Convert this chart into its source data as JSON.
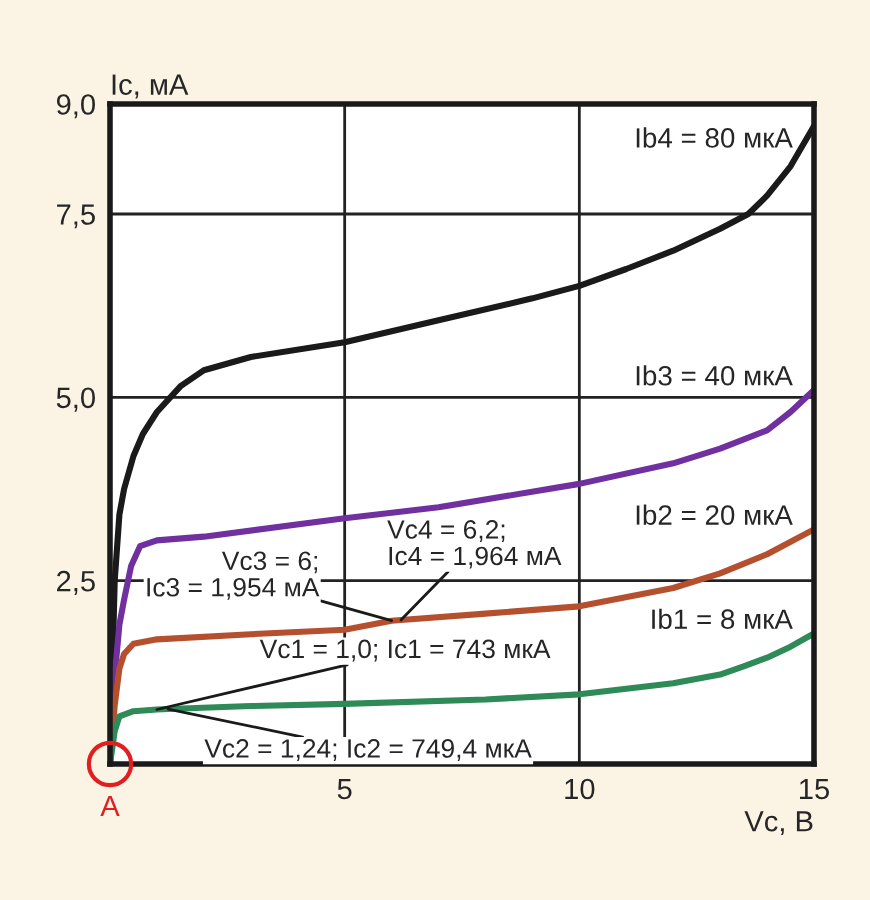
{
  "chart_data": {
    "type": "line",
    "xlabel": "Vc, B",
    "ylabel": "Ic, мА",
    "xlim": [
      0,
      15
    ],
    "ylim": [
      0,
      9.0
    ],
    "xticks": [
      5,
      10,
      15
    ],
    "yticks": [
      {
        "value": 2.5,
        "label": "2,5"
      },
      {
        "value": 5.0,
        "label": "5,0"
      },
      {
        "value": 7.5,
        "label": "7,5"
      },
      {
        "value": 9.0,
        "label": "9,0"
      }
    ],
    "grid": true,
    "legend": false,
    "marker": "none",
    "line_style": "solid",
    "series": [
      {
        "name": "Ib4 = 80 мкА",
        "color": "#1a1a1a",
        "x": [
          0,
          0.1,
          0.2,
          0.3,
          0.5,
          0.7,
          1,
          1.5,
          2,
          3,
          5,
          7,
          9,
          10,
          11,
          12,
          13,
          13.6,
          14,
          14.5,
          15
        ],
        "values": [
          0,
          2.5,
          3.4,
          3.75,
          4.2,
          4.5,
          4.8,
          5.15,
          5.37,
          5.55,
          5.75,
          6.05,
          6.35,
          6.52,
          6.75,
          7.0,
          7.3,
          7.5,
          7.75,
          8.15,
          8.7
        ]
      },
      {
        "name": "Ib3 = 40 мкА",
        "color": "#7030a0",
        "x": [
          0,
          0.1,
          0.2,
          0.3,
          0.45,
          0.64,
          1,
          2,
          5,
          7,
          10,
          12,
          13,
          14,
          14.5,
          15
        ],
        "values": [
          0,
          1.2,
          1.9,
          2.24,
          2.7,
          2.97,
          3.05,
          3.1,
          3.35,
          3.5,
          3.82,
          4.1,
          4.3,
          4.55,
          4.8,
          5.1
        ]
      },
      {
        "name": "Ib2 = 20 мкА",
        "color": "#b5502f",
        "x": [
          0,
          0.1,
          0.2,
          0.3,
          0.5,
          1,
          3,
          5,
          6,
          6.2,
          8,
          10,
          12,
          13,
          14,
          15
        ],
        "values": [
          0,
          0.8,
          1.3,
          1.5,
          1.64,
          1.7,
          1.77,
          1.83,
          1.954,
          1.964,
          2.05,
          2.15,
          2.4,
          2.6,
          2.86,
          3.2
        ]
      },
      {
        "name": "Ib1 = 8 мкА",
        "color": "#2e8b57",
        "x": [
          0,
          0.1,
          0.2,
          0.5,
          1.0,
          1.24,
          3,
          5,
          8,
          10,
          12,
          13,
          13.5,
          14,
          14.5,
          15
        ],
        "values": [
          0,
          0.45,
          0.65,
          0.72,
          0.743,
          0.7494,
          0.79,
          0.82,
          0.88,
          0.95,
          1.1,
          1.22,
          1.33,
          1.45,
          1.6,
          1.78
        ]
      }
    ],
    "annotations": [
      {
        "text": "Vc1 = 1,0; Ic1 = 743 мкА",
        "x": 1.0,
        "y": 0.743
      },
      {
        "text": "Vc2 = 1,24; Ic2 = 749,4 мкА",
        "x": 1.24,
        "y": 0.7494
      },
      {
        "text": "Vc3 = 6;\nIc3 = 1,954 мА",
        "x": 6,
        "y": 1.954
      },
      {
        "text": "Vc4 = 6,2;\nIc4 = 1,964 мА",
        "x": 6.2,
        "y": 1.964
      },
      {
        "text": "A",
        "x": 0,
        "y": 0
      }
    ]
  }
}
